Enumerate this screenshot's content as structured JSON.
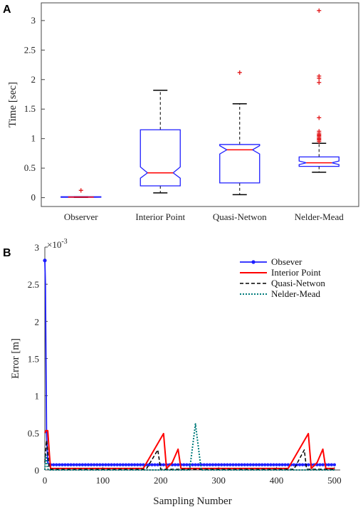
{
  "panels": {
    "a_letter": "A",
    "b_letter": "B"
  },
  "chart_data": [
    {
      "type": "box",
      "panel": "A",
      "title": "",
      "xlabel": "",
      "ylabel": "Time [sec]",
      "ylim": [
        -0.15,
        3.3
      ],
      "yticks": [
        0,
        0.5,
        1,
        1.5,
        2,
        2.5,
        3
      ],
      "ytick_labels": [
        "0",
        "0.5",
        "1",
        "1.5",
        "2",
        "2.5",
        "3"
      ],
      "categories": [
        "Observer",
        "Interior Point",
        "Quasi-Netwon",
        "Nelder-Mead"
      ],
      "box_color": "#1f1fff",
      "median_color": "#ff0000",
      "outlier_color": "#e31a1c",
      "boxes": [
        {
          "label": "Observer",
          "whisker_low": 0.005,
          "q1": 0.005,
          "median": 0.01,
          "q3": 0.015,
          "whisker_high": 0.015,
          "notch_low": 0.008,
          "notch_high": 0.012,
          "outliers": [
            0.12
          ]
        },
        {
          "label": "Interior Point",
          "whisker_low": 0.08,
          "q1": 0.2,
          "median": 0.42,
          "q3": 1.15,
          "whisker_high": 1.82,
          "notch_low": 0.33,
          "notch_high": 0.52,
          "outliers": []
        },
        {
          "label": "Quasi-Netwon",
          "whisker_low": 0.05,
          "q1": 0.25,
          "median": 0.81,
          "q3": 0.9,
          "whisker_high": 1.59,
          "notch_low": 0.74,
          "notch_high": 0.88,
          "outliers": [
            2.12
          ]
        },
        {
          "label": "Nelder-Mead",
          "whisker_low": 0.43,
          "q1": 0.53,
          "median": 0.59,
          "q3": 0.69,
          "whisker_high": 0.92,
          "notch_low": 0.56,
          "notch_high": 0.62,
          "outliers": [
            0.95,
            0.97,
            0.99,
            1.01,
            1.03,
            1.05,
            1.07,
            1.09,
            1.12,
            1.35,
            1.95,
            2.02,
            2.06,
            3.17
          ]
        }
      ]
    },
    {
      "type": "line",
      "panel": "B",
      "title": "",
      "xlabel": "Sampling Number",
      "ylabel": "Error [m]",
      "y_multiplier": "×10",
      "y_multiplier_exp": "-3",
      "xlim": [
        0,
        510
      ],
      "ylim": [
        0,
        3
      ],
      "xticks": [
        0,
        100,
        200,
        300,
        400,
        500
      ],
      "xtick_labels": [
        "0",
        "100",
        "200",
        "300",
        "400",
        "500"
      ],
      "yticks": [
        0,
        0.5,
        1,
        1.5,
        2,
        2.5,
        3
      ],
      "ytick_labels": [
        "0",
        "0.5",
        "1",
        "1.5",
        "2",
        "2.5",
        "3"
      ],
      "legend_position": "top-right",
      "series": [
        {
          "name": "Obsever",
          "color": "#1f1fff",
          "style": "solid-marker",
          "x": [
            0,
            1,
            3,
            5,
            10,
            500
          ],
          "y": [
            2.82,
            2.5,
            0.5,
            0.1,
            0.07,
            0.07
          ]
        },
        {
          "name": "Interior Point",
          "color": "#ff0000",
          "style": "solid",
          "x": [
            0,
            2,
            5,
            8,
            10,
            15,
            170,
            205,
            210,
            220,
            230,
            235,
            240,
            420,
            455,
            460,
            470,
            480,
            485,
            500
          ],
          "y": [
            0.5,
            0.53,
            0.53,
            0.2,
            0.02,
            0.02,
            0.02,
            0.49,
            0.02,
            0.1,
            0.28,
            0.02,
            0.02,
            0.02,
            0.49,
            0.02,
            0.1,
            0.28,
            0.02,
            0.02
          ]
        },
        {
          "name": "Quasi-Netwon",
          "color": "#000000",
          "style": "dashed",
          "x": [
            0,
            3,
            5,
            7,
            10,
            175,
            195,
            200,
            430,
            448,
            452,
            500
          ],
          "y": [
            0.1,
            0.4,
            0.25,
            0.05,
            0.01,
            0.01,
            0.27,
            0.01,
            0.01,
            0.27,
            0.01,
            0.01
          ]
        },
        {
          "name": "Nelder-Mead",
          "color": "#007b7b",
          "style": "dotted",
          "x": [
            0,
            2,
            4,
            6,
            250,
            260,
            270,
            500
          ],
          "y": [
            0.0,
            0.2,
            0.05,
            0.0,
            0.0,
            0.62,
            0.0,
            0.0
          ]
        }
      ]
    }
  ]
}
